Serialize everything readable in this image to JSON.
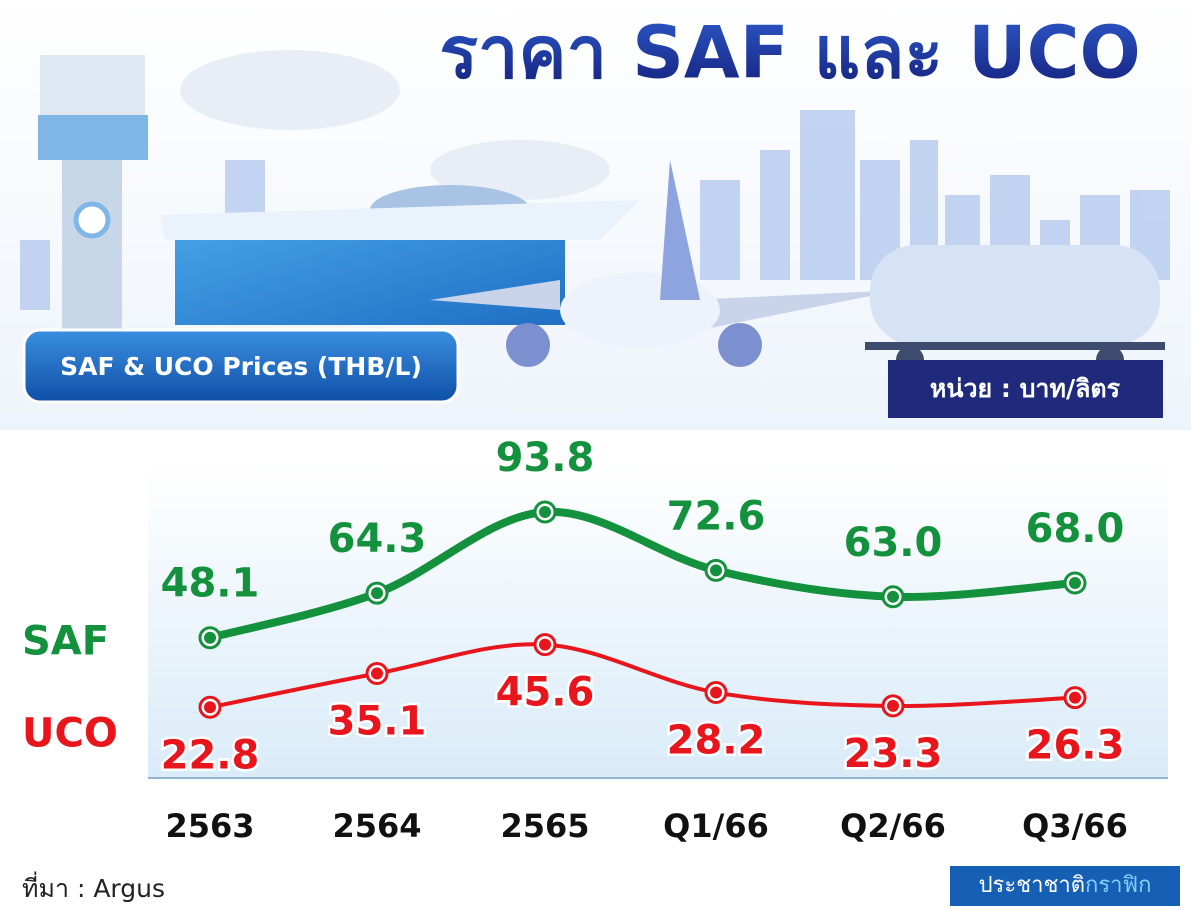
{
  "chart_data": {
    "type": "line",
    "title": "ราคา SAF และ UCO",
    "subtitle": "SAF & UCO Prices (THB/L)",
    "unit_note": "หน่วย : บาท/ลิตร",
    "source": "ที่มา : Argus",
    "credit": [
      "ประชาชาติ",
      "กราฟิก"
    ],
    "categories": [
      "2563",
      "2564",
      "2565",
      "Q1/66",
      "Q2/66",
      "Q3/66"
    ],
    "series": [
      {
        "name": "SAF",
        "color": "#14913c",
        "values": [
          48.1,
          64.3,
          93.8,
          72.6,
          63.0,
          68.0
        ],
        "value_labels": [
          "48.1",
          "64.3",
          "93.8",
          "72.6",
          "63.0",
          "68.0"
        ]
      },
      {
        "name": "UCO",
        "color": "#e8151c",
        "values": [
          22.8,
          35.1,
          45.6,
          28.2,
          23.3,
          26.3
        ],
        "value_labels": [
          "22.8",
          "35.1",
          "45.6",
          "28.2",
          "23.3",
          "26.3"
        ]
      }
    ]
  }
}
